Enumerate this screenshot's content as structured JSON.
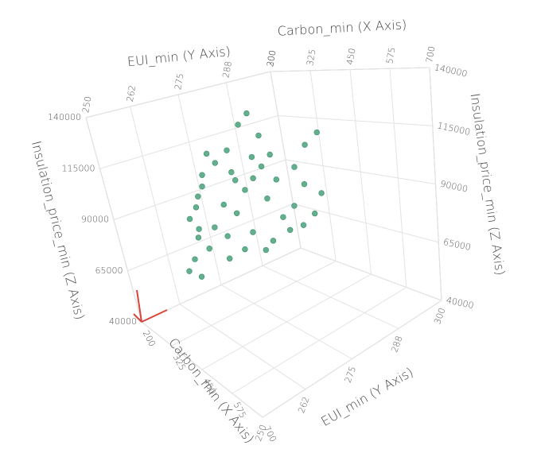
{
  "chart_data": {
    "type": "scatter3d",
    "x_label": "Carbon_min (X Axis)",
    "y_label": "EUI_min (Y Axis)",
    "z_label": "Insulation_price_min (Z Axis)",
    "xlim": [
      200,
      700
    ],
    "xticks": [
      200,
      325,
      450,
      575,
      700
    ],
    "ylim": [
      250,
      300
    ],
    "yticks": [
      250,
      262,
      275,
      288,
      300
    ],
    "zlim": [
      40000,
      140000
    ],
    "zticks": [
      40000,
      65000,
      90000,
      115000,
      140000
    ],
    "grid": true,
    "color": "#62b08d",
    "x": [
      220,
      225,
      222,
      230,
      235,
      240,
      215,
      260,
      300,
      280,
      270,
      290,
      250,
      260,
      320,
      340,
      360,
      380,
      400,
      420,
      350,
      310,
      330,
      245,
      255,
      265,
      275,
      285,
      295,
      305,
      315,
      270,
      235,
      228,
      240,
      250,
      260,
      370,
      390,
      410,
      345,
      285,
      232,
      380,
      300
    ],
    "y": [
      268,
      270,
      269,
      272,
      274,
      276,
      266,
      275,
      280,
      278,
      280,
      284,
      285,
      287,
      284,
      286,
      288,
      290,
      290,
      292,
      285,
      282,
      283,
      271,
      273,
      276,
      279,
      281,
      283,
      285,
      287,
      275,
      270,
      271,
      273,
      277,
      280,
      289,
      291,
      292,
      287,
      278,
      268,
      288,
      286
    ],
    "z": [
      60000,
      70000,
      80000,
      90000,
      100000,
      110000,
      55000,
      58000,
      70000,
      80000,
      95000,
      105000,
      120000,
      125000,
      85000,
      75000,
      80000,
      90000,
      110000,
      115000,
      95000,
      60000,
      65000,
      65000,
      75000,
      85000,
      100000,
      90000,
      95000,
      100000,
      105000,
      70000,
      75000,
      85000,
      95000,
      105000,
      110000,
      70000,
      75000,
      85000,
      68000,
      62000,
      52000,
      100000,
      115000
    ]
  }
}
